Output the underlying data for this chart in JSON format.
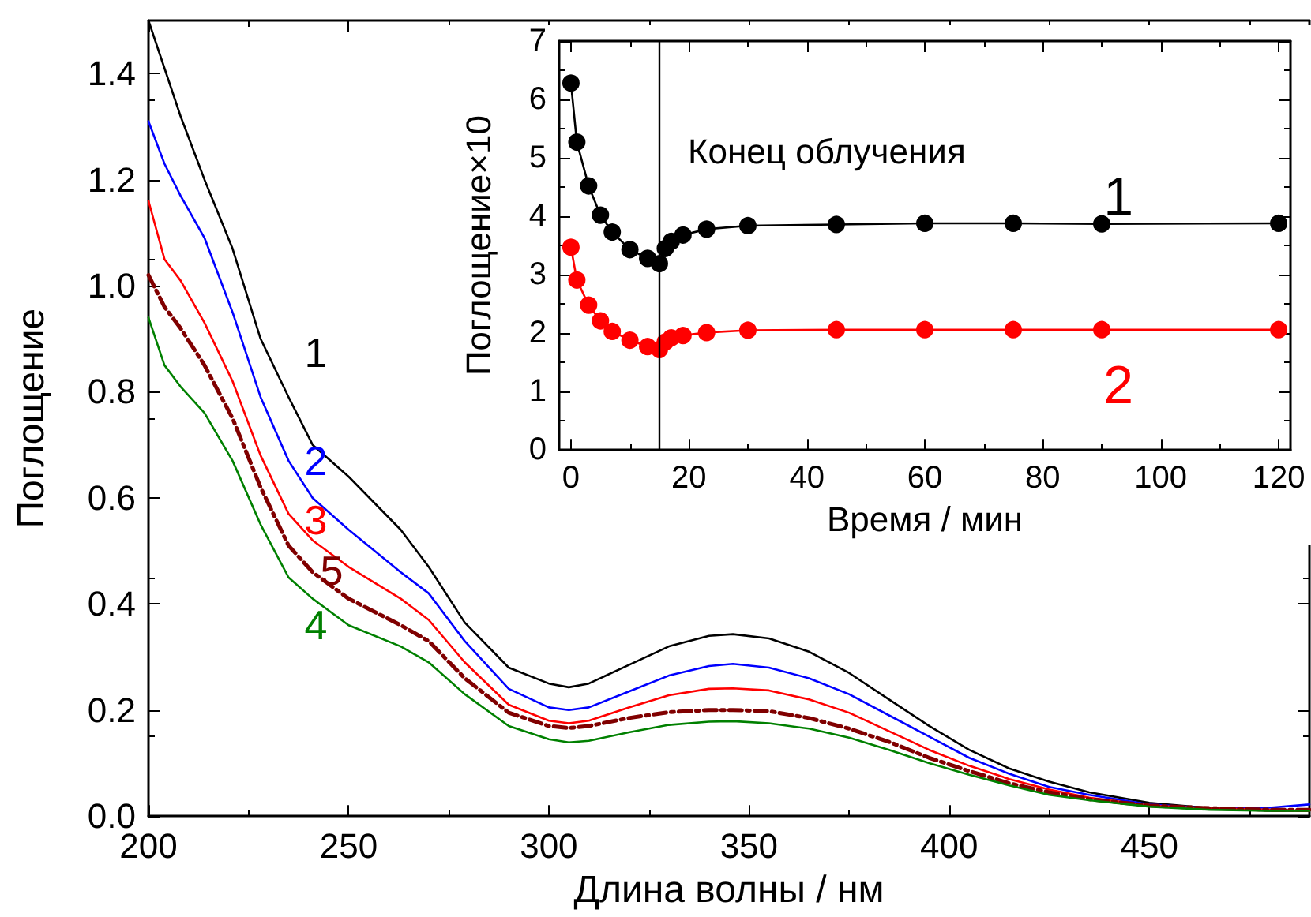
{
  "chart_data": [
    {
      "type": "line",
      "xlabel": "Длина волны / нм",
      "ylabel": "Поглощение",
      "xlim": [
        200,
        490
      ],
      "xticks": [
        200,
        250,
        300,
        350,
        400,
        450
      ],
      "ylim": [
        0,
        1.5
      ],
      "yticks": [
        {
          "value": 0,
          "label": "0.0"
        },
        0.2,
        0.4,
        0.6,
        0.8,
        {
          "value": 1,
          "label": "1.0"
        },
        1.2,
        1.4
      ],
      "grid": false,
      "marker": "none",
      "x": [
        200,
        204,
        208,
        214,
        221,
        228,
        235,
        241,
        250,
        263,
        270,
        279,
        290,
        300,
        305,
        310,
        320,
        330,
        340,
        346,
        355,
        365,
        375,
        385,
        395,
        405,
        415,
        425,
        435,
        450,
        465,
        480,
        490
      ],
      "series": [
        {
          "name": "1",
          "color": "#000000",
          "line_style": "solid",
          "values": [
            1.5,
            1.41,
            1.32,
            1.2,
            1.07,
            0.9,
            0.79,
            0.7,
            0.64,
            0.54,
            0.47,
            0.365,
            0.28,
            0.25,
            0.243,
            0.25,
            0.285,
            0.32,
            0.34,
            0.343,
            0.335,
            0.31,
            0.27,
            0.22,
            0.17,
            0.125,
            0.09,
            0.065,
            0.045,
            0.025,
            0.015,
            0.01,
            0.01
          ]
        },
        {
          "name": "2",
          "color": "#0000ff",
          "line_style": "solid",
          "values": [
            1.31,
            1.23,
            1.17,
            1.09,
            0.95,
            0.79,
            0.67,
            0.6,
            0.54,
            0.46,
            0.42,
            0.33,
            0.24,
            0.205,
            0.2,
            0.205,
            0.235,
            0.265,
            0.283,
            0.287,
            0.28,
            0.26,
            0.23,
            0.19,
            0.15,
            0.11,
            0.08,
            0.055,
            0.04,
            0.022,
            0.015,
            0.016,
            0.022
          ]
        },
        {
          "name": "3",
          "color": "#ff0000",
          "line_style": "solid",
          "values": [
            1.16,
            1.05,
            1.01,
            0.93,
            0.82,
            0.68,
            0.57,
            0.52,
            0.47,
            0.41,
            0.37,
            0.29,
            0.21,
            0.18,
            0.175,
            0.18,
            0.205,
            0.228,
            0.24,
            0.241,
            0.237,
            0.22,
            0.195,
            0.16,
            0.125,
            0.095,
            0.07,
            0.05,
            0.035,
            0.02,
            0.015,
            0.012,
            0.01
          ]
        },
        {
          "name": "5",
          "color": "#800000",
          "line_style": "dashed",
          "values": [
            1.02,
            0.96,
            0.92,
            0.85,
            0.75,
            0.62,
            0.51,
            0.46,
            0.41,
            0.36,
            0.33,
            0.26,
            0.195,
            0.17,
            0.166,
            0.17,
            0.185,
            0.196,
            0.2,
            0.2,
            0.198,
            0.185,
            0.165,
            0.14,
            0.11,
            0.085,
            0.062,
            0.045,
            0.032,
            0.02,
            0.015,
            0.012,
            0.012
          ]
        },
        {
          "name": "4",
          "color": "#008000",
          "line_style": "solid",
          "values": [
            0.94,
            0.85,
            0.81,
            0.76,
            0.67,
            0.55,
            0.45,
            0.41,
            0.36,
            0.32,
            0.29,
            0.23,
            0.17,
            0.145,
            0.139,
            0.142,
            0.158,
            0.172,
            0.178,
            0.179,
            0.175,
            0.165,
            0.148,
            0.125,
            0.1,
            0.078,
            0.058,
            0.04,
            0.03,
            0.018,
            0.012,
            0.01,
            0.01
          ]
        }
      ]
    },
    {
      "type": "line",
      "xlabel": "Время / мин",
      "ylabel": "Поглощение×10",
      "xlim": [
        -2,
        122
      ],
      "xticks": [
        0,
        20,
        40,
        60,
        80,
        100,
        120
      ],
      "ylim": [
        0,
        7
      ],
      "yticks": [
        0,
        1,
        2,
        3,
        4,
        5,
        6,
        7
      ],
      "grid": false,
      "marker": "circle",
      "x": [
        0,
        1,
        3,
        5,
        7,
        10,
        13,
        15,
        16,
        17,
        19,
        23,
        30,
        45,
        60,
        75,
        90,
        120
      ],
      "ref_lines": [
        {
          "axis": "x",
          "value": 15,
          "label": "Конец облучения",
          "color": "#000000"
        }
      ],
      "series": [
        {
          "name": "1",
          "color": "#000000",
          "values": [
            6.28,
            5.27,
            4.52,
            4.02,
            3.73,
            3.43,
            3.28,
            3.19,
            3.45,
            3.57,
            3.68,
            3.78,
            3.84,
            3.86,
            3.88,
            3.88,
            3.87,
            3.88
          ]
        },
        {
          "name": "2",
          "color": "#ff0000",
          "values": [
            3.47,
            2.91,
            2.48,
            2.21,
            2.03,
            1.88,
            1.77,
            1.72,
            1.85,
            1.92,
            1.96,
            2.01,
            2.05,
            2.06,
            2.06,
            2.06,
            2.06,
            2.06
          ]
        }
      ]
    }
  ]
}
